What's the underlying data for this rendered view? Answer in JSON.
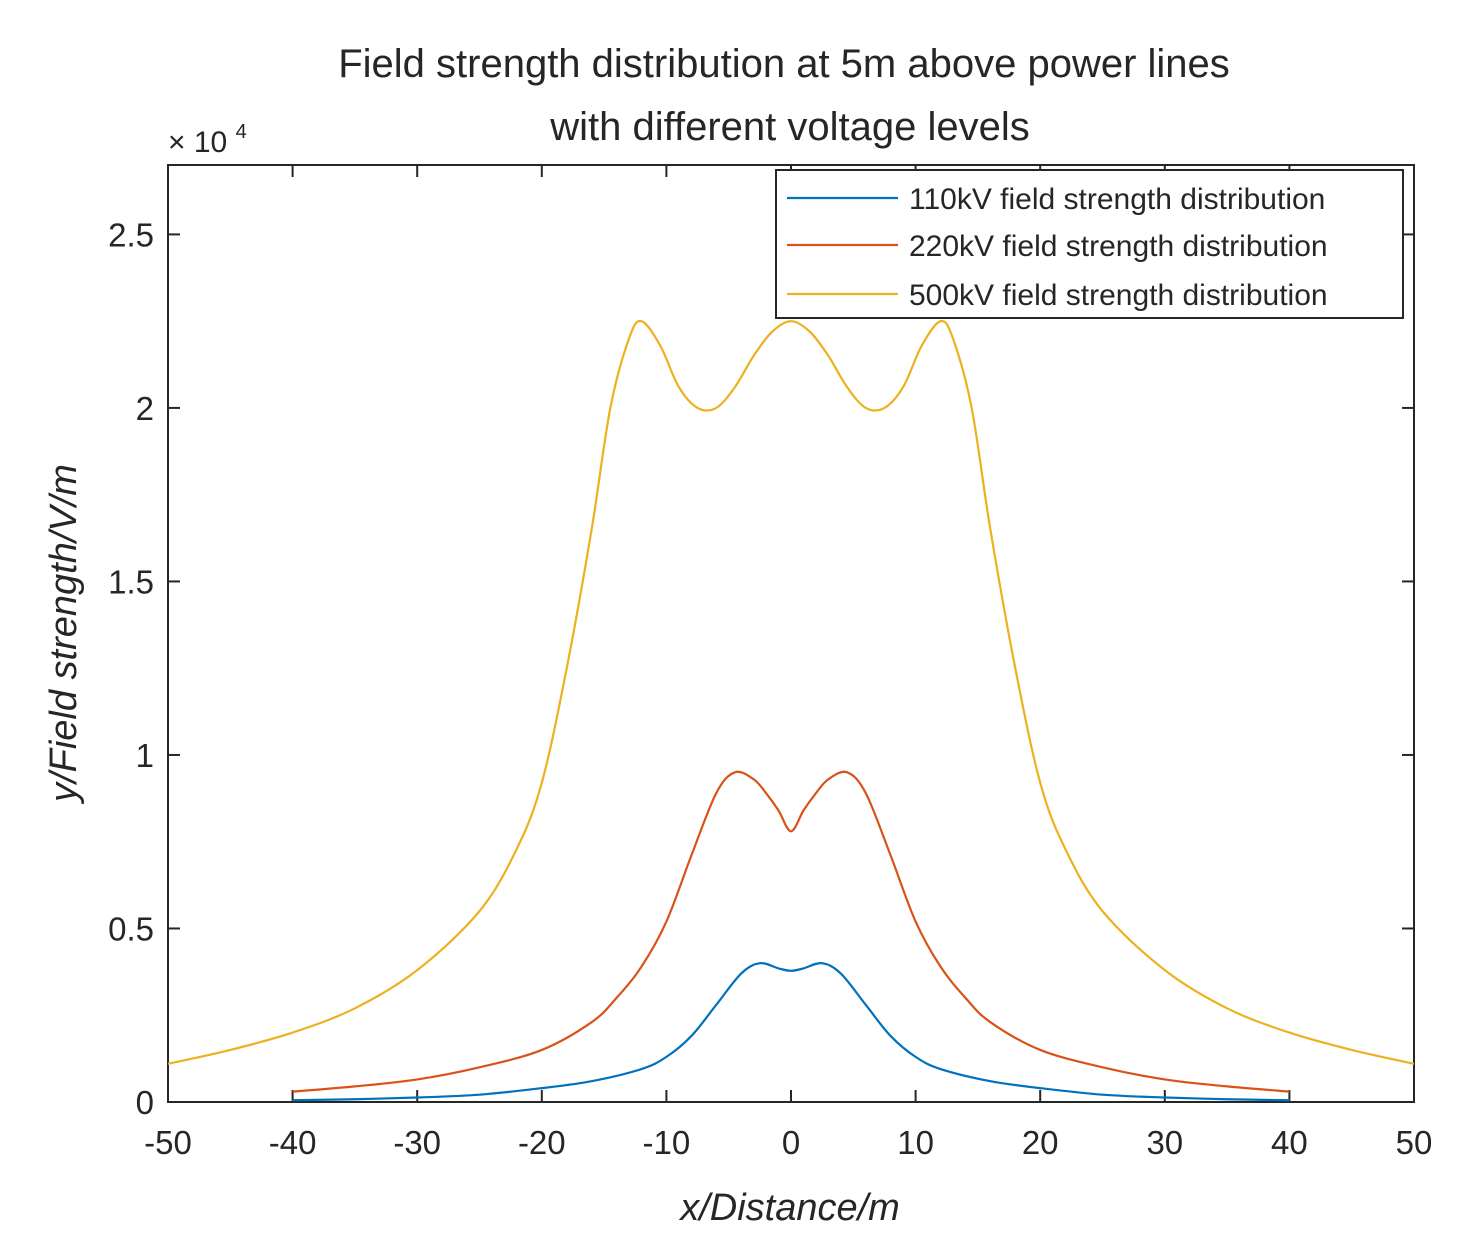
{
  "chart_data": {
    "type": "line",
    "title_lines": [
      "Field strength distribution at 5m above power lines",
      "with different voltage levels"
    ],
    "xlabel": "x/Distance/m",
    "ylabel": "y/Field strength/V/m",
    "xlim": [
      -50,
      50
    ],
    "ylim": [
      0,
      27000
    ],
    "x_ticks": [
      -50,
      -40,
      -30,
      -20,
      -10,
      0,
      10,
      20,
      30,
      40,
      50
    ],
    "x_tick_labels": [
      "-50",
      "-40",
      "-30",
      "-20",
      "-10",
      "0",
      "10",
      "20",
      "30",
      "40",
      "50"
    ],
    "y_ticks": [
      0,
      5000,
      10000,
      15000,
      20000,
      25000
    ],
    "y_tick_labels": [
      "0",
      "0.5",
      "1",
      "1.5",
      "2",
      "2.5"
    ],
    "y_multiplier": {
      "base": "× 10",
      "exponent": "4"
    },
    "legend_position": "top-right",
    "series": [
      {
        "name": "110kV field strength distribution",
        "color": "#0072BD",
        "x": [
          -40,
          -35,
          -30,
          -25,
          -20,
          -16,
          -12,
          -10,
          -8,
          -6,
          -4,
          -2.5,
          -1,
          0,
          1,
          2.5,
          4,
          6,
          8,
          10,
          12,
          16,
          20,
          25,
          30,
          35,
          40
        ],
        "values": [
          50,
          80,
          130,
          210,
          400,
          600,
          950,
          1300,
          1900,
          2800,
          3700,
          4000,
          3850,
          3780,
          3850,
          4000,
          3700,
          2800,
          1900,
          1300,
          950,
          600,
          400,
          210,
          130,
          80,
          50
        ]
      },
      {
        "name": "220kV field strength distribution",
        "color": "#D95319",
        "x": [
          -40,
          -35,
          -30,
          -25,
          -20,
          -16,
          -14,
          -12,
          -10,
          -8,
          -6,
          -4.5,
          -3,
          -2,
          -1,
          0,
          1,
          2,
          3,
          4.5,
          6,
          8,
          10,
          12,
          14,
          16,
          20,
          25,
          30,
          35,
          40
        ],
        "values": [
          300,
          450,
          650,
          1000,
          1500,
          2300,
          3000,
          3900,
          5200,
          7100,
          8900,
          9500,
          9300,
          8900,
          8400,
          7800,
          8400,
          8900,
          9300,
          9500,
          8900,
          7100,
          5200,
          3900,
          3000,
          2300,
          1500,
          1000,
          650,
          450,
          300
        ]
      },
      {
        "name": "500kV field strength distribution",
        "color": "#EDB120",
        "x": [
          -50,
          -45,
          -40,
          -35,
          -30,
          -25,
          -22,
          -20,
          -18,
          -16,
          -14.5,
          -13,
          -12,
          -10.5,
          -9,
          -7.5,
          -6,
          -4.5,
          -3,
          -1.5,
          0,
          1.5,
          3,
          4.5,
          6,
          7.5,
          9,
          10.5,
          12,
          13,
          14.5,
          16,
          18,
          20,
          22,
          25,
          30,
          35,
          40,
          45,
          50
        ],
        "values": [
          1100,
          1500,
          2000,
          2700,
          3800,
          5500,
          7300,
          9200,
          12500,
          16500,
          20000,
          22000,
          22500,
          21800,
          20600,
          20000,
          20000,
          20600,
          21500,
          22200,
          22500,
          22200,
          21500,
          20600,
          20000,
          20000,
          20600,
          21800,
          22500,
          22000,
          20000,
          16500,
          12500,
          9200,
          7300,
          5500,
          3800,
          2700,
          2000,
          1500,
          1100
        ]
      }
    ]
  }
}
